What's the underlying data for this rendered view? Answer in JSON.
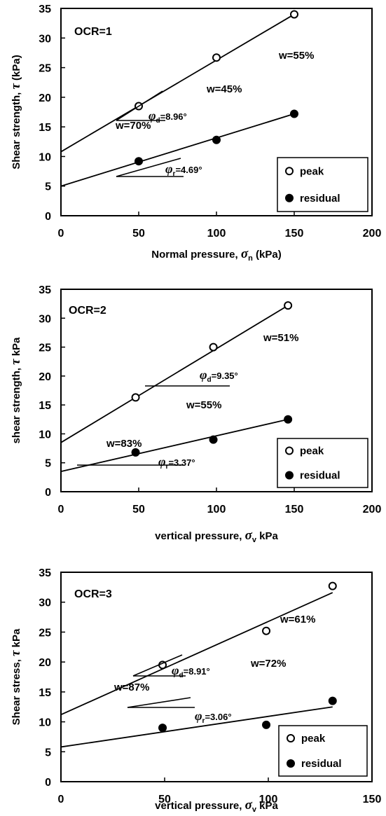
{
  "chart_data": [
    {
      "type": "scatter",
      "annotation_title": "OCR=1",
      "xlabel": "Normal pressure, σn (kPa)",
      "xlabel_parts": [
        "Normal pressure, ",
        "σ",
        "n",
        " (kPa)"
      ],
      "ylabel": "Shear strength, τ (kPa)",
      "ylabel_parts": [
        "Shear strength, ",
        "τ",
        " (kPa)"
      ],
      "xlim": [
        0,
        200
      ],
      "ylim": [
        0,
        35
      ],
      "xticks": [
        "0",
        "50",
        "100",
        "150",
        "200"
      ],
      "yticks": [
        "0",
        "5",
        "10",
        "15",
        "20",
        "25",
        "30",
        "35"
      ],
      "series": [
        {
          "name": "peak",
          "marker": "open-circle",
          "x": [
            50,
            100,
            150
          ],
          "y": [
            18.5,
            26.7,
            34
          ]
        },
        {
          "name": "residual",
          "marker": "filled-circle",
          "x": [
            50,
            100,
            150
          ],
          "y": [
            9.2,
            12.8,
            17.2
          ]
        }
      ],
      "fit_lines": [
        {
          "series": "peak",
          "x": [
            0,
            150
          ],
          "y": [
            10.8,
            34
          ]
        },
        {
          "series": "residual",
          "x": [
            0,
            150
          ],
          "y": [
            5.0,
            17.2
          ]
        }
      ],
      "annotations": [
        "w=55%",
        "w=45%",
        "w=70%"
      ],
      "angles": [
        {
          "symbol": "φ",
          "sub": "d",
          "value": "=8.96°"
        },
        {
          "symbol": "φ",
          "sub": "r",
          "value": "=4.69°"
        }
      ],
      "legend": {
        "position": "bottom-right",
        "items": [
          "peak",
          "residual"
        ]
      }
    },
    {
      "type": "scatter",
      "annotation_title": "OCR=2",
      "xlabel": "vertical pressure, σv kPa",
      "xlabel_parts": [
        "vertical pressure, ",
        "σ",
        "v",
        " kPa"
      ],
      "ylabel": "shear strength, τ kPa",
      "ylabel_parts": [
        "shear strength, ",
        "τ",
        " kPa"
      ],
      "xlim": [
        0,
        200
      ],
      "ylim": [
        0,
        35
      ],
      "xticks": [
        "0",
        "50",
        "100",
        "150",
        "200"
      ],
      "yticks": [
        "0",
        "5",
        "10",
        "15",
        "20",
        "25",
        "30",
        "35"
      ],
      "series": [
        {
          "name": "peak",
          "marker": "open-circle",
          "x": [
            48,
            98,
            146
          ],
          "y": [
            16.3,
            25,
            32.2
          ]
        },
        {
          "name": "residual",
          "marker": "filled-circle",
          "x": [
            48,
            98,
            146
          ],
          "y": [
            6.8,
            9,
            12.5
          ]
        }
      ],
      "fit_lines": [
        {
          "series": "peak",
          "x": [
            0,
            146
          ],
          "y": [
            8.5,
            32.2
          ]
        },
        {
          "series": "residual",
          "x": [
            0,
            146
          ],
          "y": [
            3.5,
            12.5
          ]
        }
      ],
      "annotations": [
        "w=51%",
        "w=55%",
        "w=83%"
      ],
      "angles": [
        {
          "symbol": "φ",
          "sub": "d",
          "value": "=9.35°"
        },
        {
          "symbol": "φ",
          "sub": "r",
          "value": "=3.37°"
        }
      ],
      "legend": {
        "position": "bottom-right",
        "items": [
          "peak",
          "residual"
        ]
      }
    },
    {
      "type": "scatter",
      "annotation_title": "OCR=3",
      "xlabel": "vertical pressure, σv kPa",
      "xlabel_parts": [
        "vertical pressure, ",
        "σ",
        "v",
        " kPa"
      ],
      "ylabel": "Shear stress, τ kPa",
      "ylabel_parts": [
        "Shear stress, ",
        "τ",
        " kPa"
      ],
      "xlim": [
        0,
        150
      ],
      "ylim": [
        0,
        35
      ],
      "xticks": [
        "0",
        "50",
        "100",
        "150"
      ],
      "yticks": [
        "0",
        "5",
        "10",
        "15",
        "20",
        "25",
        "30",
        "35"
      ],
      "series": [
        {
          "name": "peak",
          "marker": "open-circle",
          "x": [
            49,
            99,
            131
          ],
          "y": [
            19.5,
            25.2,
            32.7
          ]
        },
        {
          "name": "residual",
          "marker": "filled-circle",
          "x": [
            49,
            99,
            131
          ],
          "y": [
            9,
            9.5,
            13.5
          ]
        }
      ],
      "fit_lines": [
        {
          "series": "peak",
          "x": [
            0,
            131
          ],
          "y": [
            11.2,
            31.6
          ]
        },
        {
          "series": "residual",
          "x": [
            0,
            131
          ],
          "y": [
            5.8,
            12.5
          ]
        }
      ],
      "annotations": [
        "w=61%",
        "w=87%",
        "w=72%"
      ],
      "angles": [
        {
          "symbol": "φ",
          "sub": "d",
          "value": "=8.91°"
        },
        {
          "symbol": "φ",
          "sub": "r",
          "value": "=3.06°"
        }
      ],
      "legend": {
        "position": "bottom-right",
        "items": [
          "peak",
          "residual"
        ]
      }
    }
  ]
}
